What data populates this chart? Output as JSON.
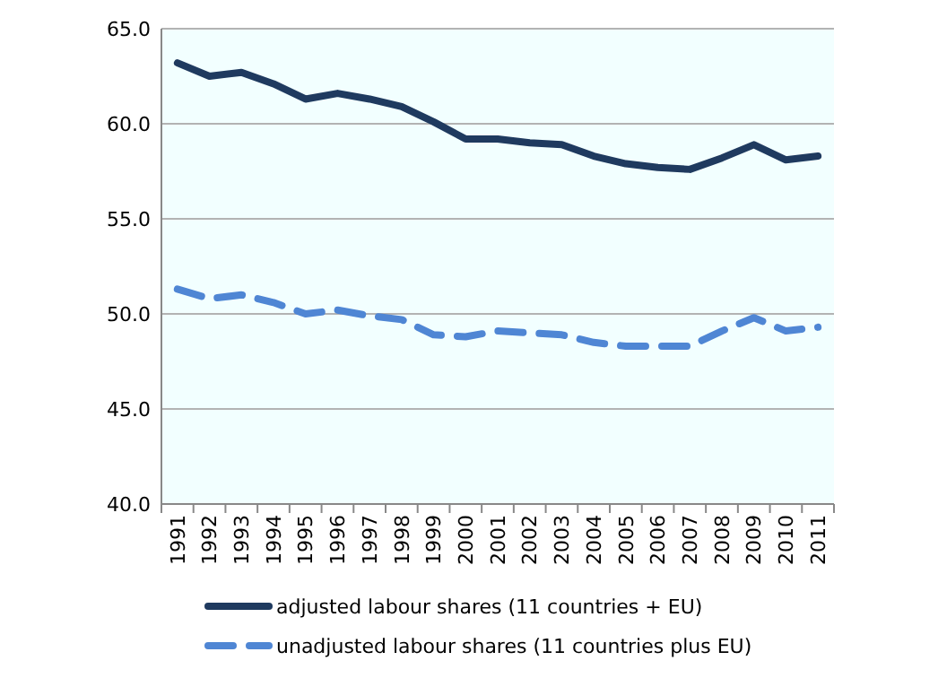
{
  "chart_data": {
    "type": "line",
    "categories": [
      "1991",
      "1992",
      "1993",
      "1994",
      "1995",
      "1996",
      "1997",
      "1998",
      "1999",
      "2000",
      "2001",
      "2002",
      "2003",
      "2004",
      "2005",
      "2006",
      "2007",
      "2008",
      "2009",
      "2010",
      "2011"
    ],
    "series": [
      {
        "name": "adjusted labour shares (11 countries + EU)",
        "color": "#1f3a5f",
        "line_style": "solid",
        "values": [
          63.2,
          62.5,
          62.7,
          62.1,
          61.3,
          61.6,
          61.3,
          60.9,
          60.1,
          59.2,
          59.2,
          59.0,
          58.9,
          58.3,
          57.9,
          57.7,
          57.6,
          58.2,
          58.9,
          58.1,
          58.3
        ]
      },
      {
        "name": "unadjusted labour shares (11 countries plus EU)",
        "color": "#4f86d4",
        "line_style": "dashed",
        "values": [
          51.3,
          50.8,
          51.0,
          50.6,
          50.0,
          50.2,
          49.9,
          49.7,
          48.9,
          48.8,
          49.1,
          49.0,
          48.9,
          48.5,
          48.3,
          48.3,
          48.3,
          49.1,
          49.8,
          49.1,
          49.3
        ]
      }
    ],
    "ylim": [
      40,
      65
    ],
    "yticks": [
      {
        "value": 40,
        "label": "40.0"
      },
      {
        "value": 45,
        "label": "45.0"
      },
      {
        "value": 50,
        "label": "50.0"
      },
      {
        "value": 55,
        "label": "55.0"
      },
      {
        "value": 60,
        "label": "60.0"
      },
      {
        "value": 65,
        "label": "65.0"
      }
    ],
    "grid": "y",
    "legend": "bottom",
    "marker": "none"
  }
}
